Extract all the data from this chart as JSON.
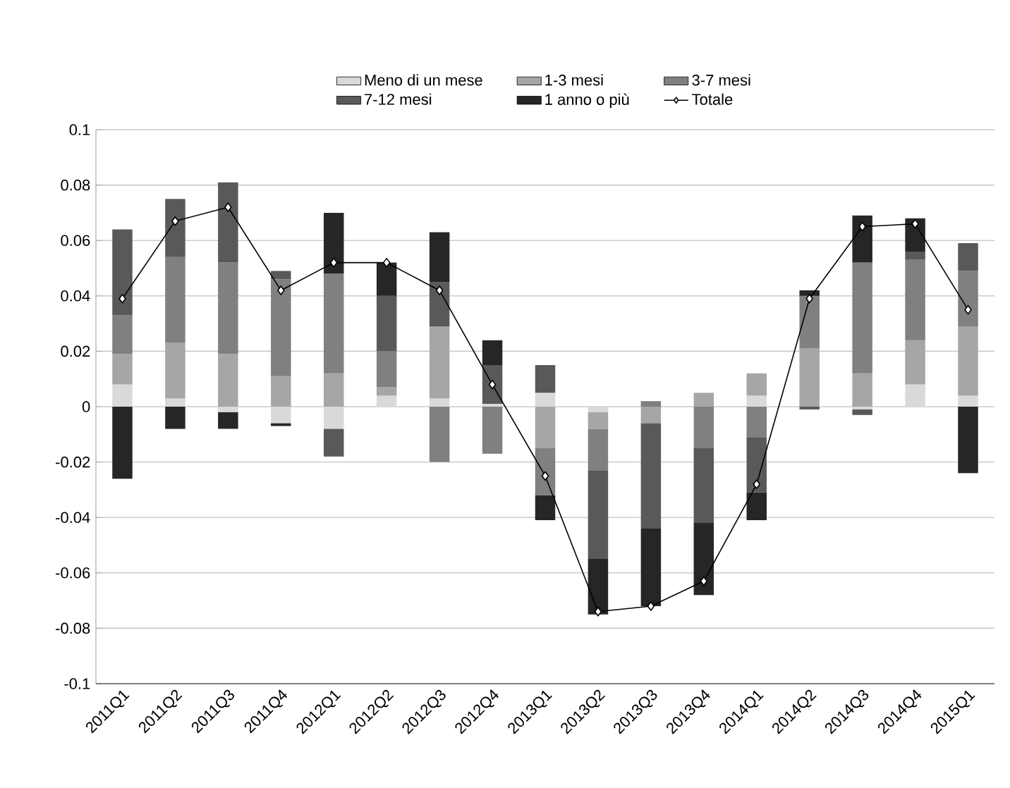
{
  "chart_data": {
    "type": "bar",
    "stacked": true,
    "grid": "y",
    "legend": "top",
    "categories": [
      "2011Q1",
      "2011Q2",
      "2011Q3",
      "2011Q4",
      "2012Q1",
      "2012Q2",
      "2012Q3",
      "2012Q4",
      "2013Q1",
      "2013Q2",
      "2013Q3",
      "2013Q4",
      "2014Q1",
      "2014Q2",
      "2014Q3",
      "2014Q4",
      "2015Q1"
    ],
    "ylim": [
      -0.1,
      0.1
    ],
    "yticks": [
      {
        "value": -0.1,
        "label": "-0.1"
      },
      -0.08,
      -0.06,
      -0.04,
      -0.02,
      0,
      0.02,
      0.04,
      0.06,
      0.08,
      {
        "value": 0.1,
        "label": "0.1"
      }
    ],
    "series": [
      {
        "name": "Meno di un mese",
        "color": "#d9d9d9",
        "values": [
          0.008,
          0.003,
          -0.002,
          -0.006,
          -0.008,
          0.004,
          0.003,
          0.001,
          0.005,
          -0.002,
          null,
          null,
          0.004,
          null,
          -0.001,
          0.008,
          0.004
        ]
      },
      {
        "name": "1-3 mesi",
        "color": "#a6a6a6",
        "values": [
          0.011,
          0.02,
          0.019,
          0.011,
          0.012,
          0.003,
          0.026,
          null,
          -0.015,
          -0.006,
          -0.006,
          0.005,
          0.008,
          0.021,
          0.012,
          0.016,
          0.025
        ]
      },
      {
        "name": "3-7 mesi",
        "color": "#808080",
        "values": [
          0.014,
          0.031,
          0.033,
          0.035,
          0.036,
          0.013,
          -0.02,
          -0.017,
          -0.017,
          -0.015,
          0.002,
          -0.015,
          -0.011,
          0.019,
          0.04,
          0.029,
          0.02
        ]
      },
      {
        "name": "7-12 mesi",
        "color": "#595959",
        "values": [
          0.031,
          0.021,
          0.029,
          0.003,
          -0.01,
          0.02,
          0.016,
          0.014,
          0.01,
          -0.032,
          -0.038,
          -0.027,
          -0.02,
          -0.001,
          -0.002,
          0.003,
          0.01
        ]
      },
      {
        "name": "1 anno o più",
        "color": "#262626",
        "values": [
          -0.026,
          -0.008,
          -0.006,
          -0.001,
          0.022,
          0.012,
          0.018,
          0.009,
          -0.009,
          -0.02,
          -0.028,
          -0.026,
          -0.01,
          0.002,
          0.017,
          0.012,
          -0.024
        ]
      },
      {
        "name": "Totale",
        "type": "line",
        "marker": "diamond",
        "color": "#000000",
        "values": [
          0.039,
          0.067,
          0.072,
          0.042,
          0.052,
          0.052,
          0.042,
          0.008,
          -0.025,
          -0.074,
          -0.072,
          -0.063,
          -0.028,
          0.039,
          0.065,
          0.066,
          0.035
        ]
      }
    ]
  }
}
